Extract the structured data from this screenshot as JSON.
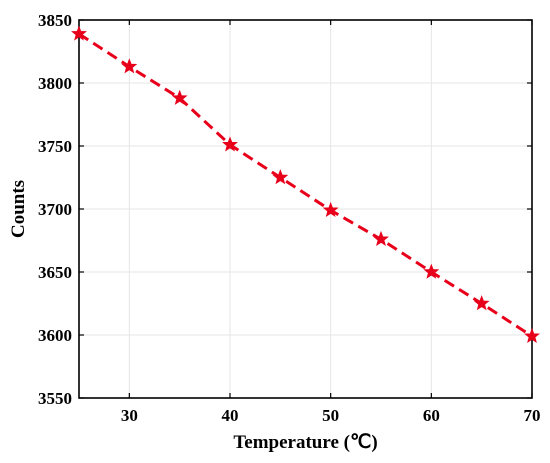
{
  "chart_data": {
    "type": "line",
    "title": "",
    "xlabel": "Temperature (℃)",
    "ylabel": "Counts",
    "xlim": [
      25,
      70
    ],
    "ylim": [
      3550,
      3850
    ],
    "xticks": [
      30,
      40,
      50,
      60,
      70
    ],
    "yticks": [
      3550,
      3600,
      3650,
      3700,
      3750,
      3800,
      3850
    ],
    "grid": true,
    "series": [
      {
        "x": [
          25,
          30,
          35,
          40,
          45,
          50,
          55,
          60,
          65,
          70
        ],
        "y": [
          3839,
          3813,
          3788,
          3751,
          3725,
          3699,
          3676,
          3650,
          3625,
          3599
        ],
        "color": "#e8001b",
        "line_style": "dashed",
        "marker": "star"
      }
    ]
  }
}
